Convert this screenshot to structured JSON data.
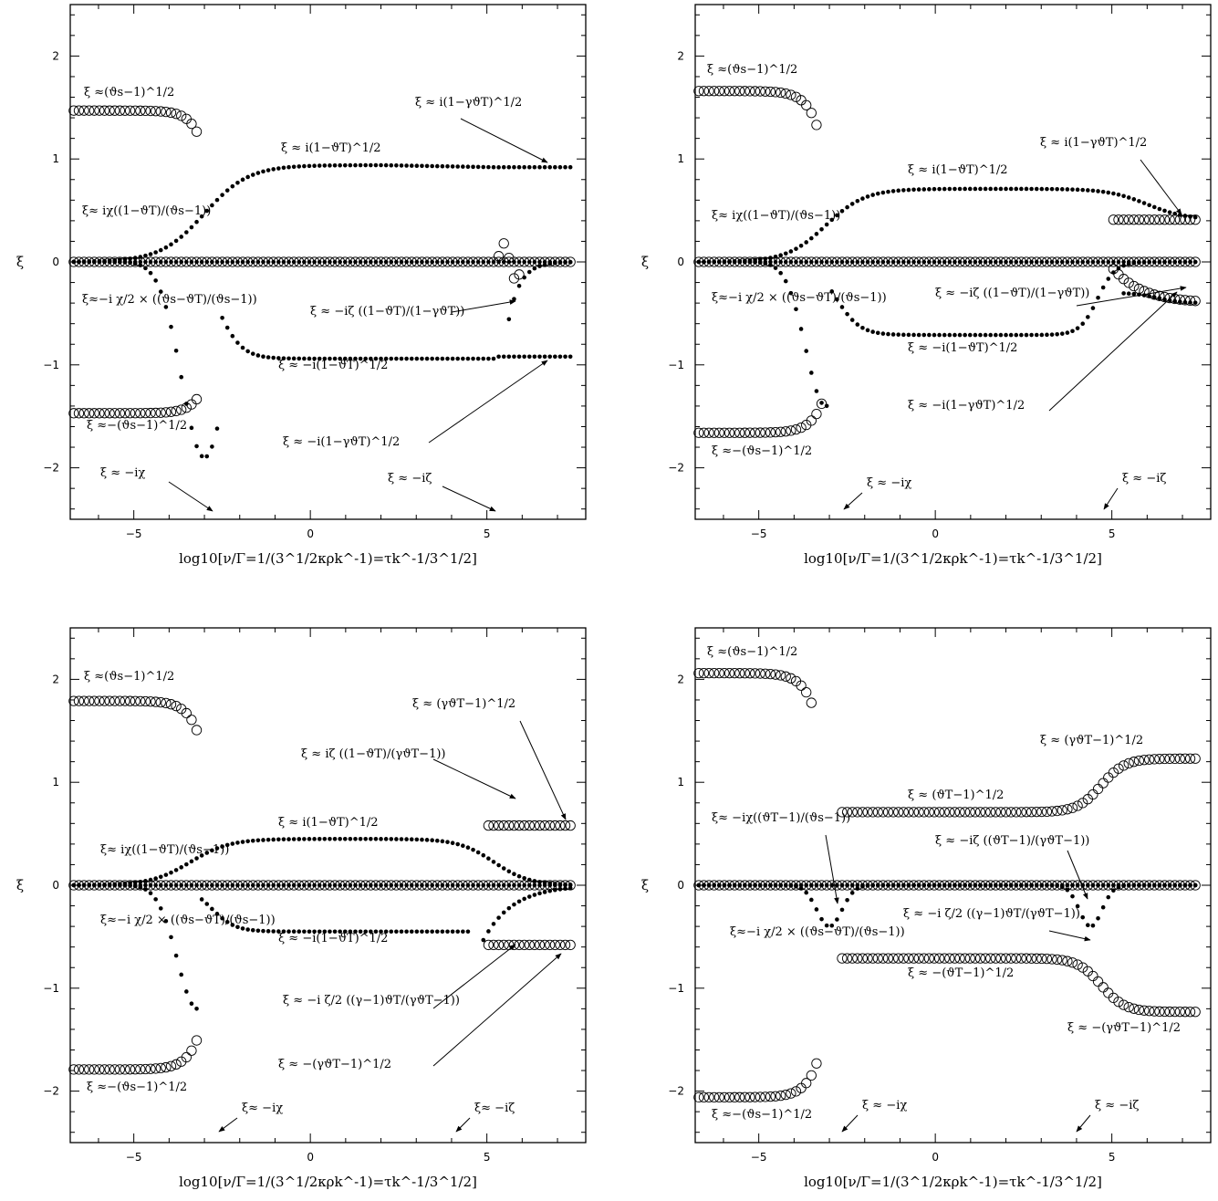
{
  "chart_data": [
    {
      "type": "scatter",
      "panel": "top-left",
      "xlabel": "log10[ν/Γ=1/(3^1/2κρk^-1)=τk^-1/3^1/2]",
      "ylabel": "ξ",
      "xlim": [
        -6.8,
        7.8
      ],
      "ylim": [
        -2.5,
        2.5
      ],
      "xticks": [
        -5,
        0,
        5
      ],
      "yticks": [
        -2,
        -1,
        0,
        1,
        2
      ],
      "levels": {
        "vs": 1.47,
        "vT": 0.94,
        "gvT": 0.92,
        "zeta_end": -0.92
      },
      "annotations": [
        "ξ ≈(ϑs−1)^1/2",
        "ξ ≈ i(1−γϑT)^1/2",
        "ξ ≈ i(1−ϑT)^1/2",
        "ξ≈ iχ((1−ϑT)/(ϑs−1))",
        "ξ≈−i χ/2 × ((ϑs−ϑT)/(ϑs−1))",
        "ξ ≈ −iζ ((1−ϑT)/(1−γϑT))",
        "ξ ≈ −i(1−ϑT)^1/2",
        "ξ ≈−(ϑs−1)^1/2",
        "ξ ≈ −i(1−γϑT)^1/2",
        "ξ ≈ −iχ",
        "ξ ≈ −iζ"
      ]
    },
    {
      "type": "scatter",
      "panel": "top-right",
      "xlabel": "log10[ν/Γ=1/(3^1/2κρk^-1)=τk^-1/3^1/2]",
      "ylabel": "ξ",
      "xlim": [
        -6.8,
        7.8
      ],
      "ylim": [
        -2.5,
        2.5
      ],
      "xticks": [
        -5,
        0,
        5
      ],
      "yticks": [
        -2,
        -1,
        0,
        1,
        2
      ],
      "levels": {
        "vs": 1.66,
        "vT": 0.71,
        "gvT": 0.41
      },
      "annotations": [
        "ξ ≈(ϑs−1)^1/2",
        "ξ ≈ i(1−γϑT)^1/2",
        "ξ ≈ i(1−ϑT)^1/2",
        "ξ≈ iχ((1−ϑT)/(ϑs−1))",
        "ξ≈−i χ/2 × ((ϑs−ϑT)/(ϑs−1))",
        "ξ ≈ −iζ ((1−ϑT)/(1−γϑT))",
        "ξ ≈ −i(1−ϑT)^1/2",
        "ξ ≈ −i(1−γϑT)^1/2",
        "ξ ≈−(ϑs−1)^1/2",
        "ξ ≈ −iχ",
        "ξ ≈ −iζ"
      ]
    },
    {
      "type": "scatter",
      "panel": "bottom-left",
      "xlabel": "log10[ν/Γ=1/(3^1/2κρk^-1)=τk^-1/3^1/2]",
      "ylabel": "ξ",
      "xlim": [
        -6.8,
        7.8
      ],
      "ylim": [
        -2.5,
        2.5
      ],
      "xticks": [
        -5,
        0,
        5
      ],
      "yticks": [
        -2,
        -1,
        0,
        1,
        2
      ],
      "levels": {
        "vs": 1.79,
        "vT": 0.45,
        "gvT": 0.58
      },
      "annotations": [
        "ξ ≈(ϑs−1)^1/2",
        "ξ ≈ (γϑT−1)^1/2",
        "ξ ≈ iζ ((1−ϑT)/(γϑT−1))",
        "ξ ≈ i(1−ϑT)^1/2",
        "ξ≈ iχ((1−ϑT)/(ϑs−1))",
        "ξ≈−i χ/2 × ((ϑs−ϑT)/(ϑs−1))",
        "ξ ≈ −i(1−ϑT)^1/2",
        "ξ ≈ −i ζ/2 ((γ−1)ϑT/(γϑT−1))",
        "ξ ≈ −(γϑT−1)^1/2",
        "ξ ≈−(ϑs−1)^1/2",
        "ξ≈ −iχ",
        "ξ≈ −iζ"
      ]
    },
    {
      "type": "scatter",
      "panel": "bottom-right",
      "xlabel": "log10[ν/Γ=1/(3^1/2κρk^-1)=τk^-1/3^1/2]",
      "ylabel": "ξ",
      "xlim": [
        -6.8,
        7.8
      ],
      "ylim": [
        -2.5,
        2.5
      ],
      "xticks": [
        -5,
        0,
        5
      ],
      "yticks": [
        -2,
        -1,
        0,
        1,
        2
      ],
      "levels": {
        "vs": 2.06,
        "vT": 0.71,
        "gvT": 1.23
      },
      "annotations": [
        "ξ ≈(ϑs−1)^1/2",
        "ξ ≈ (γϑT−1)^1/2",
        "ξ ≈ (ϑT−1)^1/2",
        "ξ≈ −iχ((ϑT−1)/(ϑs−1))",
        "ξ ≈ −iζ ((ϑT−1)/(γϑT−1))",
        "ξ≈−i χ/2 × ((ϑs−ϑT)/(ϑs−1))",
        "ξ ≈ −i ζ/2 ((γ−1)ϑT/(γϑT−1))",
        "ξ ≈ −(ϑT−1)^1/2",
        "ξ ≈ −(γϑT−1)^1/2",
        "ξ ≈−(ϑs−1)^1/2",
        "ξ ≈ −iχ",
        "ξ ≈ −iζ"
      ]
    }
  ]
}
